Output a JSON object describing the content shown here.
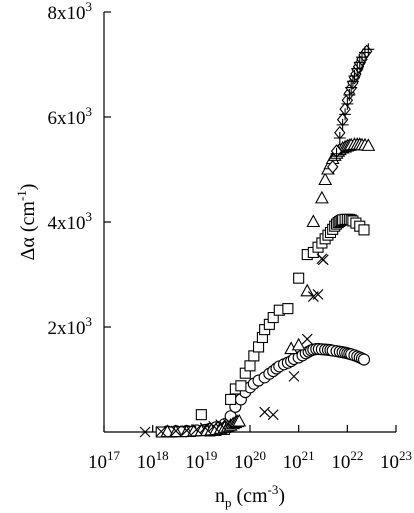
{
  "chart_data": {
    "type": "scatter",
    "title": "",
    "x_scale": "log",
    "xlim": [
      1e+17,
      1e+23
    ],
    "ylim": [
      0,
      8000
    ],
    "grid": false,
    "legend": "none",
    "xlabel": {
      "base": "n",
      "sub": "p",
      "unit_open": " (cm",
      "unit_exp": "-3",
      "unit_close": ")"
    },
    "ylabel": {
      "base": "Δα (cm",
      "exp": "-1",
      "close": ")"
    },
    "x_ticks": [
      {
        "value": 1e+17,
        "base": "10",
        "exp": "17"
      },
      {
        "value": 1e+18,
        "base": "10",
        "exp": "18"
      },
      {
        "value": 1e+19,
        "base": "10",
        "exp": "19"
      },
      {
        "value": 1e+20,
        "base": "10",
        "exp": "20"
      },
      {
        "value": 1e+21,
        "base": "10",
        "exp": "21"
      },
      {
        "value": 1e+22,
        "base": "10",
        "exp": "22"
      },
      {
        "value": 1e+23,
        "base": "10",
        "exp": "23"
      }
    ],
    "y_ticks": [
      {
        "value": 2000,
        "base": "2x10",
        "exp": "3"
      },
      {
        "value": 4000,
        "base": "4x10",
        "exp": "3"
      },
      {
        "value": 6000,
        "base": "6x10",
        "exp": "3"
      },
      {
        "value": 8000,
        "base": "8x10",
        "exp": "3"
      }
    ],
    "series": [
      {
        "marker": "circle",
        "x": [
          2e+18,
          3e+18,
          5e+18,
          8e+18,
          1.2e+19,
          1.5e+19,
          2e+19,
          3e+19,
          4e+19,
          5e+19,
          6.5e+19,
          8e+19,
          1e+20,
          1.2e+20,
          1.5e+20,
          2e+20,
          2.5e+20,
          3e+20,
          3.5e+20,
          4e+20,
          5e+20,
          6e+20,
          7e+20,
          8e+20,
          1e+21,
          1.2e+21,
          1.4e+21,
          1.6e+21,
          1.8e+21,
          2e+21,
          2.3e+21,
          2.6e+21,
          3e+21,
          3.5e+21,
          4e+21,
          4.5e+21,
          5e+21,
          6e+21,
          7e+21,
          8e+21,
          9e+21,
          1e+22,
          1.1e+22,
          1.2e+22,
          1.4e+22,
          1.6e+22,
          1.8e+22,
          2e+22,
          2.2e+22
        ],
        "y": [
          10,
          15,
          20,
          30,
          40,
          60,
          90,
          150,
          300,
          480,
          620,
          760,
          850,
          920,
          980,
          1040,
          1110,
          1160,
          1210,
          1250,
          1290,
          1320,
          1350,
          1390,
          1420,
          1460,
          1500,
          1530,
          1555,
          1570,
          1580,
          1580,
          1575,
          1570,
          1565,
          1560,
          1550,
          1540,
          1530,
          1520,
          1510,
          1500,
          1490,
          1480,
          1460,
          1440,
          1420,
          1400,
          1380
        ]
      },
      {
        "marker": "square",
        "x": [
          1.5e+18,
          2.5e+18,
          4e+18,
          6e+18,
          1e+19,
          1.5e+19,
          2e+19,
          3e+19,
          4e+19,
          5e+19,
          6.5e+19,
          8e+19,
          1e+20,
          1.2e+20,
          1.5e+20,
          1.8e+20,
          2e+20,
          2.5e+20,
          3e+20,
          4e+20,
          6e+20,
          1e+21,
          1.5e+21,
          2e+21,
          2.5e+21,
          3e+21,
          3.5e+21,
          4e+21,
          4.5e+21,
          5e+21,
          5.5e+21,
          6e+21,
          6.5e+21,
          7e+21,
          7.5e+21,
          8e+21,
          9e+21,
          1e+22,
          1.1e+22,
          1.2e+22,
          1.3e+22,
          1.5e+22,
          1.8e+22,
          2.2e+22
        ],
        "y": [
          0,
          0,
          5,
          10,
          330,
          20,
          30,
          50,
          620,
          820,
          880,
          1120,
          1260,
          1450,
          1620,
          1800,
          1950,
          2050,
          2180,
          2320,
          2350,
          2930,
          3380,
          3420,
          3520,
          3600,
          3680,
          3750,
          3800,
          3860,
          3920,
          3960,
          3990,
          4010,
          4030,
          4040,
          4050,
          4050,
          4050,
          4040,
          4020,
          3980,
          3920,
          3850
        ]
      },
      {
        "marker": "triangle",
        "x": [
          2e+18,
          3e+18,
          5e+18,
          7e+18,
          1e+19,
          1.3e+19,
          1.6e+19,
          2e+19,
          2.5e+19,
          3e+19,
          3.5e+19,
          4e+19,
          4.5e+19,
          5e+19,
          5.5e+19,
          6e+19,
          7e+20,
          1e+21,
          1.5e+21,
          2e+21,
          3e+21,
          3.5e+21,
          4e+21,
          4.5e+21,
          5e+21,
          5.5e+21,
          6e+21,
          6.5e+21,
          7e+21,
          8e+21,
          9e+21,
          1e+22,
          1.1e+22,
          1.2e+22,
          1.4e+22,
          1.6e+22,
          1.8e+22,
          2e+22,
          2.3e+22,
          2.7e+22
        ],
        "y": [
          0,
          0,
          0,
          10,
          15,
          20,
          30,
          40,
          60,
          80,
          100,
          120,
          150,
          170,
          190,
          200,
          1580,
          1650,
          2680,
          4000,
          4450,
          4800,
          5000,
          5100,
          5200,
          5260,
          5300,
          5340,
          5370,
          5400,
          5420,
          5440,
          5450,
          5460,
          5470,
          5470,
          5470,
          5460,
          5460,
          5450
        ]
      },
      {
        "marker": "cross",
        "x": [
          7e+17,
          1.5e+18,
          3e+18,
          5e+18,
          8e+18,
          1.2e+19,
          1.8e+19,
          2.5e+19,
          3.5e+19,
          2e+20,
          3e+20,
          8e+20,
          1.5e+21,
          2e+21,
          2.5e+21,
          3e+21,
          3.2e+21
        ],
        "y": [
          0,
          10,
          20,
          30,
          50,
          80,
          110,
          140,
          160,
          380,
          330,
          1060,
          1770,
          2580,
          2620,
          3300,
          3280
        ]
      },
      {
        "marker": "diamond",
        "x": [
          5e+21,
          6e+21,
          7e+21,
          8e+21,
          9e+21,
          1e+22,
          1.1e+22,
          1.2e+22,
          1.3e+22,
          1.4e+22,
          1.5e+22,
          1.6e+22,
          1.7e+22,
          1.8e+22,
          2e+22,
          2.2e+22,
          2.5e+22
        ],
        "y": [
          5050,
          5350,
          5700,
          5950,
          6150,
          6320,
          6450,
          6550,
          6650,
          6750,
          6820,
          6900,
          6960,
          7020,
          7100,
          7180,
          7250
        ]
      },
      {
        "marker": "plus",
        "x": [
          6e+21,
          7e+21,
          8e+21,
          9e+21,
          1e+22,
          1.1e+22,
          1.2e+22,
          1.3e+22,
          1.4e+22,
          1.6e+22,
          1.8e+22,
          2e+22,
          2.3e+22,
          2.7e+22
        ],
        "y": [
          5300,
          5600,
          5850,
          6050,
          6250,
          6420,
          6560,
          6680,
          6780,
          6920,
          7040,
          7140,
          7230,
          7290
        ]
      }
    ]
  }
}
